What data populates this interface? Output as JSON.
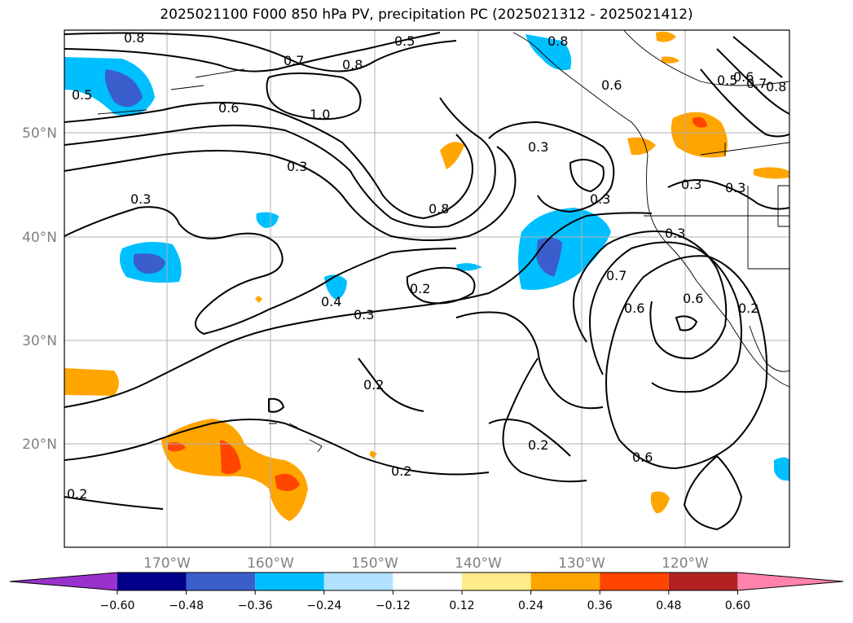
{
  "title": "2025021100 F000 850 hPa PV, precipitation PC (2025021312 - 2025021412)",
  "lat_labels": [
    "50°N",
    "40°N",
    "30°N",
    "20°N"
  ],
  "lon_labels": [
    "170°W",
    "160°W",
    "150°W",
    "140°W",
    "130°W",
    "120°W"
  ],
  "colorbar": {
    "ticks": [
      "−0.60",
      "−0.48",
      "−0.36",
      "−0.24",
      "−0.12",
      "0.12",
      "0.24",
      "0.36",
      "0.48",
      "0.60"
    ],
    "colors": [
      "#9932cc",
      "#00008b",
      "#3a5fcd",
      "#00bfff",
      "#b0e2ff",
      "#ffffff",
      "#ffec8b",
      "#ffa500",
      "#ff4500",
      "#b22222",
      "#ff82ab"
    ]
  },
  "contour_labels": [
    "0.8",
    "0.5",
    "0.8",
    "0.7",
    "0.8",
    "0.6",
    "1.0",
    "0.6",
    "0.5",
    "0.6",
    "0.7",
    "0.8",
    "0.5",
    "0.3",
    "0.3",
    "0.3",
    "0.3",
    "0.8",
    "0.3",
    "0.3",
    "0.3",
    "0.2",
    "0.4",
    "0.3",
    "0.7",
    "0.6",
    "0.2",
    "0.2",
    "0.6",
    "0.2",
    "0.2",
    "0.2",
    "0.6"
  ]
}
